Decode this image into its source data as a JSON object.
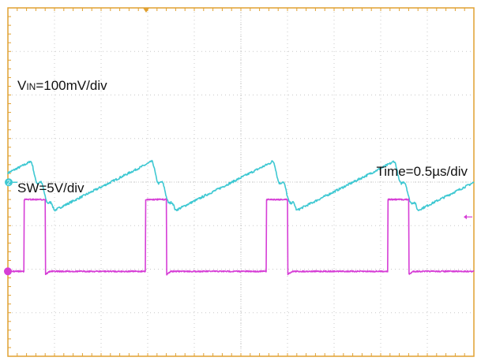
{
  "chart_data": {
    "type": "line",
    "annotations": {
      "vin_main": "V",
      "vin_sub": "IN",
      "vin_rest": "=100mV/div",
      "sw": "SW=5V/div",
      "time": "Time=0.5µs/div"
    },
    "grid": true,
    "divisions": {
      "x": 10,
      "y": 8
    },
    "colors": {
      "grid": "#c8c8c8",
      "frame": "#e0a030",
      "vin": "#3ec8d2",
      "sw": "#d63ed6"
    },
    "channel_markers": {
      "ch2": "2"
    },
    "series": [
      {
        "name": "VIN",
        "unit_per_div": "100mV",
        "waveform": "sawtooth-with-ringing",
        "periods_start_div": [
          0.0,
          2.6,
          5.2,
          7.8
        ],
        "period_div": 2.6,
        "baseline_div": 3.2,
        "ramp_top_div": 3.6,
        "ramp_bottom_div": 2.5
      },
      {
        "name": "SW",
        "unit_per_div": "5V",
        "waveform": "pulse",
        "pulse_start_div": [
          0.35,
          2.95,
          5.55,
          8.15
        ],
        "pulse_width_div": 0.45,
        "high_div": 1.65,
        "low_div": 0.0
      }
    ]
  }
}
